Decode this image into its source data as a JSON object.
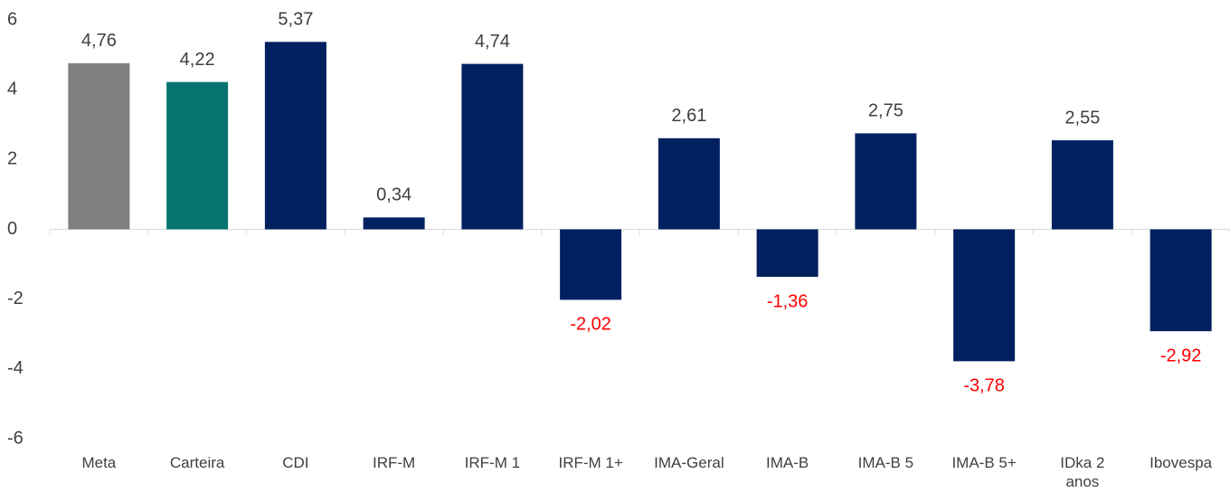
{
  "chart_data": {
    "type": "bar",
    "categories": [
      "Meta",
      "Carteira",
      "CDI",
      "IRF-M",
      "IRF-M 1",
      "IRF-M 1+",
      "IMA-Geral",
      "IMA-B",
      "IMA-B 5",
      "IMA-B 5+",
      "IDka 2\nanos",
      "Ibovespa"
    ],
    "values": [
      4.76,
      4.22,
      5.37,
      0.34,
      4.74,
      -2.02,
      2.61,
      -1.36,
      2.75,
      -3.78,
      2.55,
      -2.92
    ],
    "value_labels": [
      "4,76",
      "4,22",
      "5,37",
      "0,34",
      "4,74",
      "-2,02",
      "2,61",
      "-1,36",
      "2,75",
      "-3,78",
      "2,55",
      "-2,92"
    ],
    "colors": [
      "#808080",
      "#077470",
      "#002060",
      "#002060",
      "#002060",
      "#002060",
      "#002060",
      "#002060",
      "#002060",
      "#002060",
      "#002060",
      "#002060"
    ],
    "label_color": "#404040",
    "negative_label_color": "#ff0000",
    "ylim": [
      -6,
      6
    ],
    "yticks": [
      -6,
      -4,
      -2,
      0,
      2,
      4,
      6
    ],
    "grid": false
  }
}
